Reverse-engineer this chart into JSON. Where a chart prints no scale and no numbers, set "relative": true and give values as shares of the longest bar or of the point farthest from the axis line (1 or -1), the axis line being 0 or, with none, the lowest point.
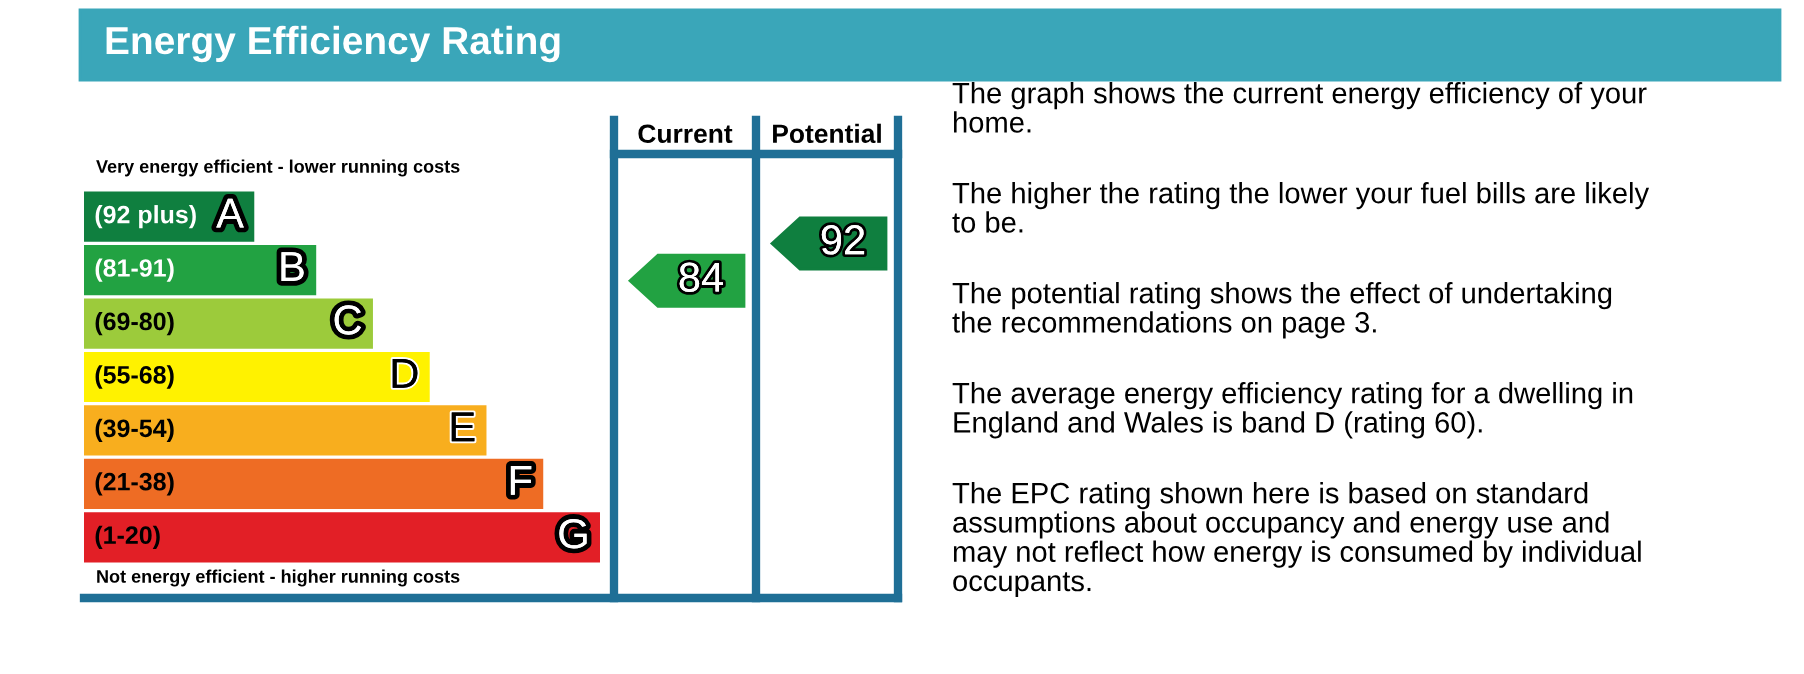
{
  "chart_data": {
    "type": "bar",
    "orientation": "horizontal",
    "relative": true,
    "title": "Energy Efficiency Rating",
    "categories": [
      "(92 plus) A",
      "(81-91) B",
      "(69-80) C",
      "(55-68) D",
      "(39-54) E",
      "(21-38) F",
      "(1-20) G"
    ],
    "values": [
      0.33,
      0.45,
      0.56,
      0.67,
      0.78,
      0.89,
      1
    ],
    "colors": [
      "#0f7f3f",
      "#22a242",
      "#9ccb3b",
      "#fff200",
      "#f8ae1e",
      "#ee6c24",
      "#e21f26"
    ],
    "annotations": [
      "Very energy efficient - lower running costs",
      "Not energy efficient - higher running costs",
      "Current",
      "Potential",
      "84",
      "92",
      "The graph shows the current energy efficiency of your\nhome.",
      "The higher the rating the lower your fuel bills are likely\nto be.",
      "The potential rating shows the effect of undertaking\nthe recommendations on page 3.",
      "The average energy efficiency rating for a dwelling in\nEngland and Wales is band D (rating 60).",
      "The EPC rating shown here is based on standard\nassumptions about occupancy and energy use and\nmay not reflect how energy is consumed by individual\noccupants."
    ]
  }
}
